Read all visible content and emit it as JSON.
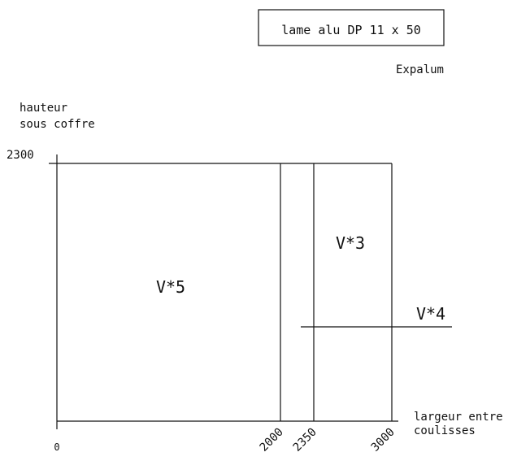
{
  "title_box": {
    "text": "lame alu DP 11 x 50"
  },
  "brand": "Expalum",
  "y_axis": {
    "label_line1": "hauteur",
    "label_line2": "sous coffre",
    "tick": "2300"
  },
  "x_axis": {
    "label_line1": "largeur entre",
    "label_line2": "coulisses",
    "ticks": [
      "0",
      "2000",
      "2350",
      "3000"
    ]
  },
  "zones": {
    "v5": "V*5",
    "v3": "V*3",
    "v4": "V*4"
  }
}
